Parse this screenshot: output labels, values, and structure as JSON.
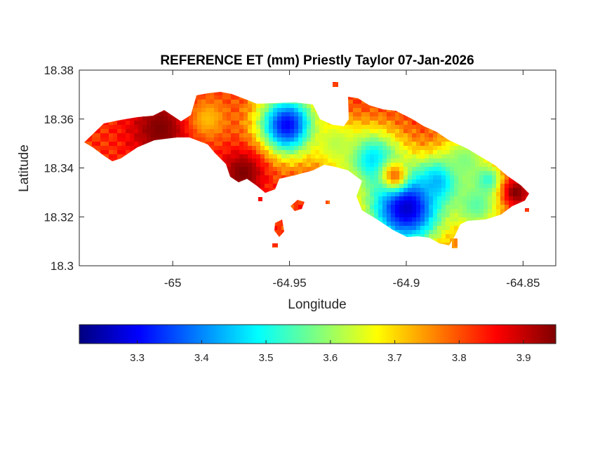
{
  "chart_data": {
    "type": "heatmap",
    "title": "REFERENCE ET (mm) Priestly Taylor 07-Jan-2026",
    "xlabel": "Longitude",
    "ylabel": "Latitude",
    "xlim": [
      -65.04,
      -64.836
    ],
    "ylim": [
      18.3,
      18.38
    ],
    "xticks": [
      -65,
      -64.95,
      -64.9,
      -64.85
    ],
    "xtick_labels": [
      "-65",
      "-64.95",
      "-64.9",
      "-64.85"
    ],
    "yticks": [
      18.3,
      18.32,
      18.34,
      18.36,
      18.38
    ],
    "ytick_labels": [
      "18.3",
      "18.32",
      "18.34",
      "18.36",
      "18.38"
    ],
    "grid": false,
    "colormap": "jet",
    "clim": [
      3.21,
      3.95
    ],
    "colorbar": {
      "location": "bottom",
      "ticks": [
        3.3,
        3.4,
        3.5,
        3.6,
        3.7,
        3.8,
        3.9
      ],
      "tick_labels": [
        "3.3",
        "3.4",
        "3.5",
        "3.6",
        "3.7",
        "3.8",
        "3.9"
      ]
    },
    "field": {
      "base_value": 3.82,
      "hotspots": [
        {
          "lon": -64.951,
          "lat": 18.3575,
          "value": 3.3,
          "radius": 0.009
        },
        {
          "lon": -64.9,
          "lat": 18.324,
          "value": 3.26,
          "radius": 0.012
        },
        {
          "lon": -64.915,
          "lat": 18.343,
          "value": 3.45,
          "radius": 0.009
        },
        {
          "lon": -64.885,
          "lat": 18.335,
          "value": 3.38,
          "radius": 0.006
        },
        {
          "lon": -64.87,
          "lat": 18.325,
          "value": 3.55,
          "radius": 0.008
        },
        {
          "lon": -64.875,
          "lat": 18.343,
          "value": 3.58,
          "radius": 0.008
        },
        {
          "lon": -64.93,
          "lat": 18.35,
          "value": 3.62,
          "radius": 0.007
        },
        {
          "lon": -64.865,
          "lat": 18.335,
          "value": 3.52,
          "radius": 0.004
        },
        {
          "lon": -64.97,
          "lat": 18.338,
          "value": 3.95,
          "radius": 0.007
        },
        {
          "lon": -65.005,
          "lat": 18.356,
          "value": 3.95,
          "radius": 0.01
        },
        {
          "lon": -64.853,
          "lat": 18.33,
          "value": 3.95,
          "radius": 0.004
        },
        {
          "lon": -64.905,
          "lat": 18.337,
          "value": 3.78,
          "radius": 0.004
        },
        {
          "lon": -64.925,
          "lat": 18.333,
          "value": 3.65,
          "radius": 0.005
        },
        {
          "lon": -64.985,
          "lat": 18.36,
          "value": 3.72,
          "radius": 0.006
        }
      ]
    }
  },
  "colors": {
    "axes_box": "#262626",
    "background": "#ffffff"
  }
}
